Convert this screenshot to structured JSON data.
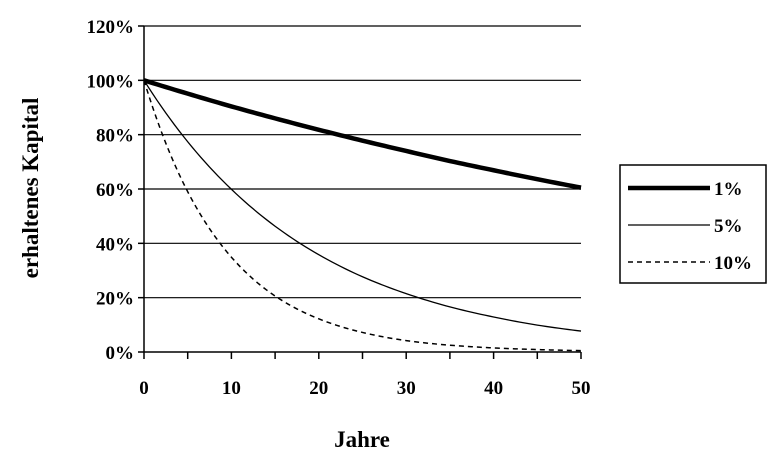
{
  "chart_data": {
    "type": "line",
    "title": "",
    "xlabel": "Jahre",
    "ylabel": "erhaltenes Kapital",
    "xlim": [
      0,
      50
    ],
    "ylim": [
      0,
      120
    ],
    "x_ticks": [
      0,
      10,
      20,
      30,
      40,
      50
    ],
    "x_tick_labels": [
      "0",
      "10",
      "20",
      "30",
      "40",
      "50"
    ],
    "y_ticks": [
      0,
      20,
      40,
      60,
      80,
      100,
      120
    ],
    "y_tick_labels": [
      "0%",
      "20%",
      "40%",
      "60%",
      "80%",
      "100%",
      "120%"
    ],
    "grid": "horizontal",
    "legend_position": "right",
    "x": [
      0,
      5,
      10,
      15,
      20,
      25,
      30,
      35,
      40,
      45,
      50
    ],
    "series": [
      {
        "name": "1%",
        "style": "thick-solid",
        "color": "#000000",
        "values": [
          100,
          95.1,
          90.4,
          86.0,
          81.8,
          77.8,
          74.0,
          70.3,
          66.9,
          63.6,
          60.5
        ]
      },
      {
        "name": "5%",
        "style": "thin-solid",
        "color": "#000000",
        "values": [
          100,
          77.4,
          59.9,
          46.3,
          35.8,
          27.7,
          21.5,
          16.6,
          12.9,
          9.9,
          7.7
        ]
      },
      {
        "name": "10%",
        "style": "dashed",
        "color": "#000000",
        "values": [
          100,
          59.0,
          34.9,
          20.6,
          12.2,
          7.2,
          4.2,
          2.5,
          1.5,
          0.9,
          0.5
        ]
      }
    ]
  }
}
